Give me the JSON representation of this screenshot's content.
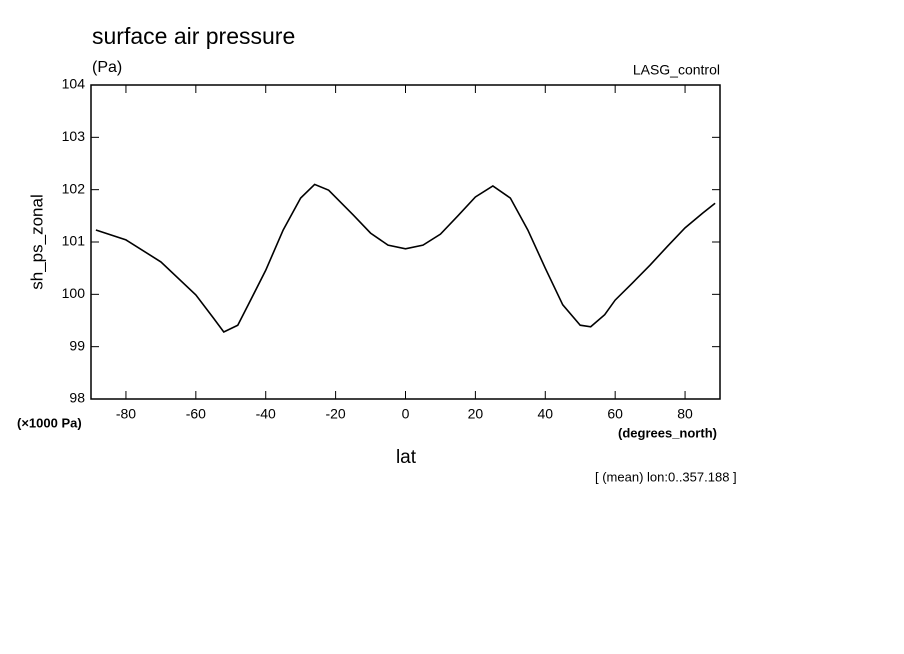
{
  "chart_data": {
    "type": "line",
    "title": "surface air pressure",
    "subtitle": "(Pa)",
    "annotation": "LASG_control",
    "y_label": "sh_ps_zonal",
    "y_unit_label": "(×1000 Pa)",
    "x_unit_label": "(degrees_north)",
    "x_label": "lat",
    "footnote": "[ (mean) lon:0..357.188 ]",
    "x": [
      -88.6,
      -80,
      -70,
      -60,
      -55,
      -52,
      -48,
      -45,
      -40,
      -35,
      -30,
      -26,
      -22,
      -15,
      -10,
      -5,
      0,
      5,
      10,
      15,
      20,
      25,
      30,
      35,
      40,
      45,
      50,
      53,
      57,
      60,
      65,
      70,
      75,
      80,
      85,
      88.6
    ],
    "series": [
      {
        "name": "sh_ps_zonal",
        "color": "#000000",
        "values": [
          101.23,
          101.04,
          100.62,
          99.99,
          99.55,
          99.28,
          99.41,
          99.8,
          100.46,
          101.23,
          101.84,
          102.1,
          101.99,
          101.52,
          101.17,
          100.94,
          100.87,
          100.94,
          101.15,
          101.5,
          101.86,
          102.07,
          101.84,
          101.23,
          100.5,
          99.8,
          99.41,
          99.38,
          99.61,
          99.89,
          100.22,
          100.56,
          100.92,
          101.27,
          101.55,
          101.74
        ]
      }
    ],
    "xlim": [
      -90,
      90
    ],
    "xticks": [
      -80,
      -60,
      -40,
      -20,
      0,
      20,
      40,
      60,
      80
    ],
    "ylim": [
      98,
      104
    ],
    "yticks": [
      98,
      99,
      100,
      101,
      102,
      103,
      104
    ],
    "grid": false
  }
}
